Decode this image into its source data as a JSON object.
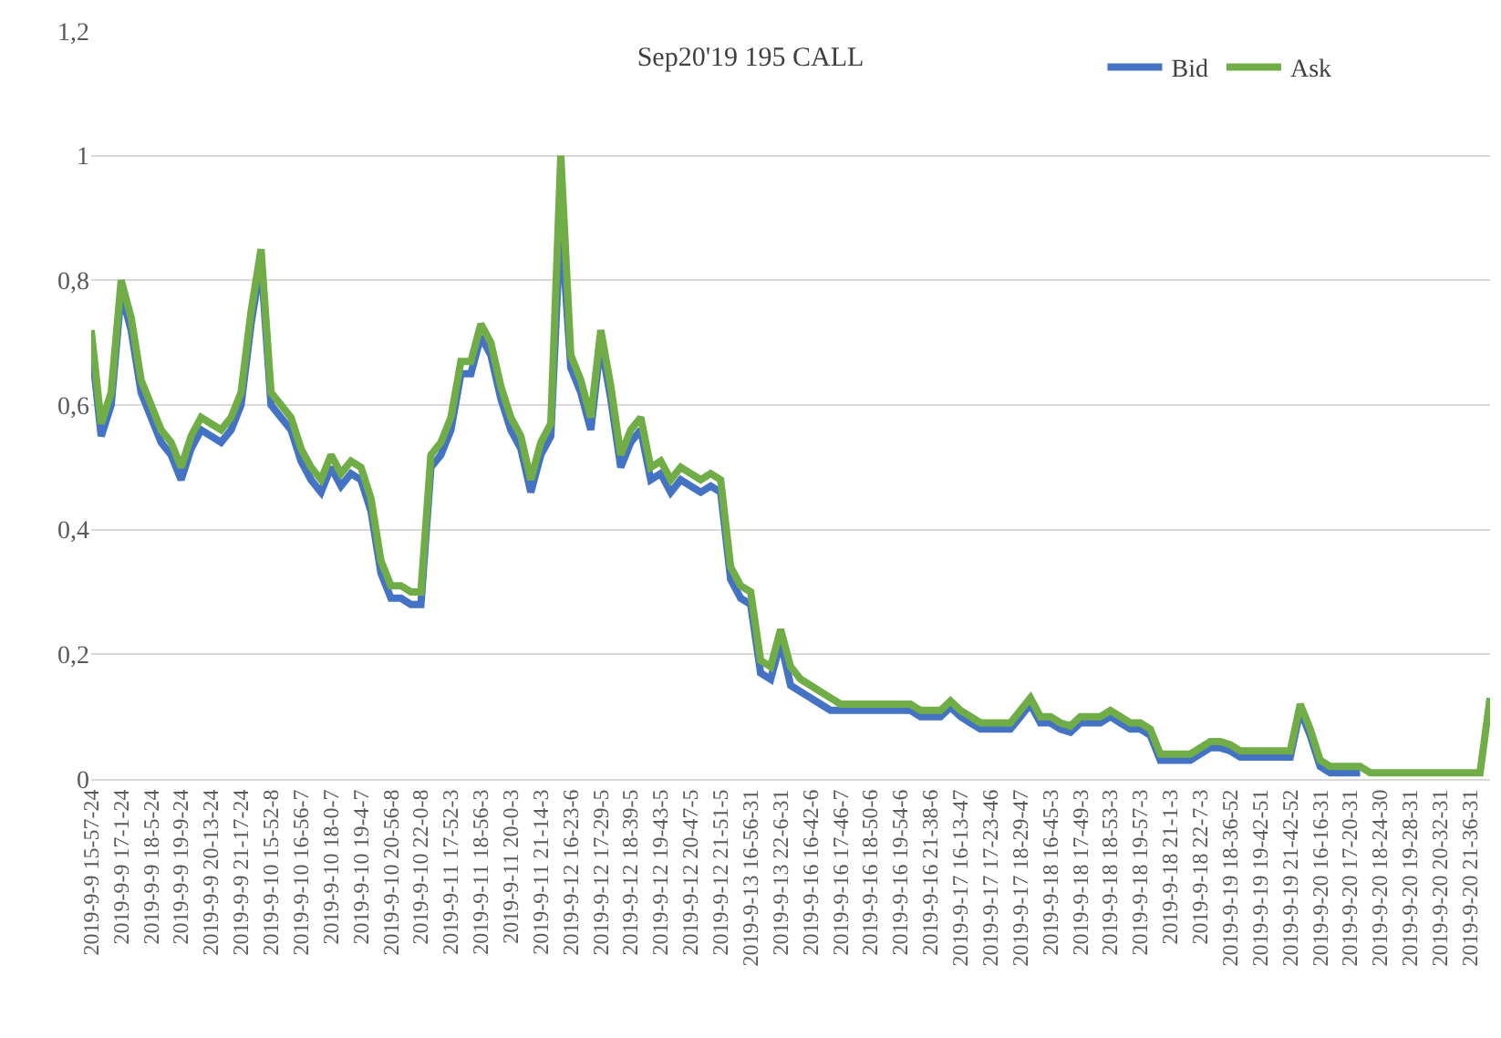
{
  "chart_data": {
    "type": "line",
    "title": "Sep20'19 195 CALL",
    "categories": [
      "2019-9-9 15-57-24",
      null,
      null,
      "2019-9-9 17-1-24",
      null,
      null,
      "2019-9-9 18-5-24",
      null,
      null,
      "2019-9-9 19-9-24",
      null,
      null,
      "2019-9-9 20-13-24",
      null,
      null,
      "2019-9-9 21-17-24",
      null,
      null,
      "2019-9-10 15-52-8",
      null,
      null,
      "2019-9-10 16-56-7",
      null,
      null,
      "2019-9-10 18-0-7",
      null,
      null,
      "2019-9-10 19-4-7",
      null,
      null,
      "2019-9-10 20-56-8",
      null,
      null,
      "2019-9-10 22-0-8",
      null,
      null,
      "2019-9-11 17-52-3",
      null,
      null,
      "2019-9-11 18-56-3",
      null,
      null,
      "2019-9-11 20-0-3",
      null,
      null,
      "2019-9-11 21-14-3",
      null,
      null,
      "2019-9-12 16-23-6",
      null,
      null,
      "2019-9-12 17-29-5",
      null,
      null,
      "2019-9-12 18-39-5",
      null,
      null,
      "2019-9-12 19-43-5",
      null,
      null,
      "2019-9-12 20-47-5",
      null,
      null,
      "2019-9-12 21-51-5",
      null,
      null,
      "2019-9-13 16-56-31",
      null,
      null,
      "2019-9-13 22-6-31",
      null,
      null,
      "2019-9-16 16-42-6",
      null,
      null,
      "2019-9-16 17-46-7",
      null,
      null,
      "2019-9-16 18-50-6",
      null,
      null,
      "2019-9-16 19-54-6",
      null,
      null,
      "2019-9-16 21-38-6",
      null,
      null,
      "2019-9-17 16-13-47",
      null,
      null,
      "2019-9-17 17-23-46",
      null,
      null,
      "2019-9-17 18-29-47",
      null,
      null,
      "2019-9-18 16-45-3",
      null,
      null,
      "2019-9-18 17-49-3",
      null,
      null,
      "2019-9-18 18-53-3",
      null,
      null,
      "2019-9-18 19-57-3",
      null,
      null,
      "2019-9-18 21-1-3",
      null,
      null,
      "2019-9-18 22-7-3",
      null,
      null,
      "2019-9-19 18-36-52",
      null,
      null,
      "2019-9-19 19-42-51",
      null,
      null,
      "2019-9-19 21-42-52",
      null,
      null,
      "2019-9-20 16-16-31",
      null,
      null,
      "2019-9-20 17-20-31",
      null,
      null,
      "2019-9-20 18-24-30",
      null,
      null,
      "2019-9-20 19-28-31",
      null,
      null,
      "2019-9-20 20-32-31",
      null,
      null,
      "2019-9-20 21-36-31",
      null,
      null
    ],
    "series": [
      {
        "name": "Bid",
        "color": "#4472c4",
        "values": [
          0.7,
          0.55,
          0.6,
          0.78,
          0.72,
          0.62,
          0.58,
          0.54,
          0.52,
          0.48,
          0.53,
          0.56,
          0.55,
          0.54,
          0.56,
          0.6,
          0.73,
          0.83,
          0.6,
          0.58,
          0.56,
          0.51,
          0.48,
          0.46,
          0.5,
          0.47,
          0.49,
          0.48,
          0.43,
          0.33,
          0.29,
          0.29,
          0.28,
          0.28,
          0.5,
          0.52,
          0.56,
          0.65,
          0.65,
          0.71,
          0.68,
          0.61,
          0.56,
          0.53,
          0.46,
          0.52,
          0.55,
          0.9,
          0.66,
          0.62,
          0.56,
          0.7,
          0.61,
          0.5,
          0.54,
          0.56,
          0.48,
          0.49,
          0.46,
          0.48,
          0.47,
          0.46,
          0.47,
          0.46,
          0.32,
          0.29,
          0.28,
          0.17,
          0.16,
          0.22,
          0.15,
          0.14,
          0.13,
          0.12,
          0.11,
          0.11,
          0.11,
          0.11,
          0.11,
          0.11,
          0.11,
          0.11,
          0.11,
          0.1,
          0.1,
          0.1,
          0.115,
          0.1,
          0.09,
          0.08,
          0.08,
          0.08,
          0.08,
          0.1,
          0.12,
          0.09,
          0.09,
          0.08,
          0.075,
          0.09,
          0.09,
          0.09,
          0.1,
          0.09,
          0.08,
          0.08,
          0.07,
          0.03,
          0.03,
          0.03,
          0.03,
          0.04,
          0.05,
          0.05,
          0.045,
          0.035,
          0.035,
          0.035,
          0.035,
          0.035,
          0.035,
          0.11,
          0.07,
          0.02,
          0.01,
          0.01,
          0.01,
          0.01,
          null,
          null,
          null,
          null,
          null,
          null,
          null,
          null,
          null,
          null,
          null,
          null,
          null
        ]
      },
      {
        "name": "Ask",
        "color": "#70ad47",
        "values": [
          0.72,
          0.57,
          0.62,
          0.8,
          0.74,
          0.64,
          0.6,
          0.56,
          0.54,
          0.5,
          0.55,
          0.58,
          0.57,
          0.56,
          0.58,
          0.62,
          0.75,
          0.85,
          0.62,
          0.6,
          0.58,
          0.53,
          0.5,
          0.48,
          0.52,
          0.49,
          0.51,
          0.5,
          0.45,
          0.35,
          0.31,
          0.31,
          0.3,
          0.3,
          0.52,
          0.54,
          0.58,
          0.67,
          0.67,
          0.73,
          0.7,
          0.63,
          0.58,
          0.55,
          0.48,
          0.54,
          0.57,
          1.0,
          0.68,
          0.64,
          0.58,
          0.72,
          0.63,
          0.52,
          0.56,
          0.58,
          0.5,
          0.51,
          0.48,
          0.5,
          0.49,
          0.48,
          0.49,
          0.48,
          0.34,
          0.31,
          0.3,
          0.19,
          0.18,
          0.24,
          0.18,
          0.16,
          0.15,
          0.14,
          0.13,
          0.12,
          0.12,
          0.12,
          0.12,
          0.12,
          0.12,
          0.12,
          0.12,
          0.11,
          0.11,
          0.11,
          0.125,
          0.11,
          0.1,
          0.09,
          0.09,
          0.09,
          0.09,
          0.11,
          0.13,
          0.1,
          0.1,
          0.09,
          0.085,
          0.1,
          0.1,
          0.1,
          0.11,
          0.1,
          0.09,
          0.09,
          0.08,
          0.04,
          0.04,
          0.04,
          0.04,
          0.05,
          0.06,
          0.06,
          0.055,
          0.045,
          0.045,
          0.045,
          0.045,
          0.045,
          0.045,
          0.12,
          0.08,
          0.03,
          0.02,
          0.02,
          0.02,
          0.02,
          0.01,
          0.01,
          0.01,
          0.01,
          0.01,
          0.01,
          0.01,
          0.01,
          0.01,
          0.01,
          0.01,
          0.01,
          0.13
        ]
      }
    ],
    "ylim": [
      0,
      1.2
    ],
    "yticks": [
      0,
      {
        "value": 0.2,
        "label": "0,2"
      },
      {
        "value": 0.4,
        "label": "0,4"
      },
      {
        "value": 0.6,
        "label": "0,6"
      },
      {
        "value": 0.8,
        "label": "0,8"
      },
      1,
      {
        "value": 1.2,
        "label": "1,2"
      }
    ],
    "grid": "y",
    "legend": "top right",
    "marker": "none",
    "line_style": "solid"
  }
}
